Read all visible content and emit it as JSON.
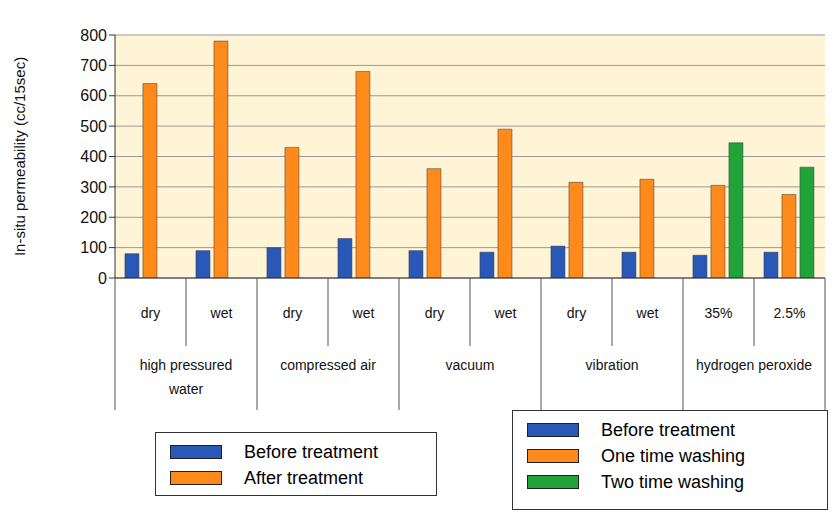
{
  "chart_data": {
    "type": "bar",
    "y_label": "In-situ permeability (cc/15sec)",
    "categories": [
      "dry",
      "wet",
      "dry",
      "wet",
      "dry",
      "wet",
      "dry",
      "wet",
      "35%",
      "2.5%"
    ],
    "groups": [
      {
        "label": "high pressured water",
        "categories": [
          "dry",
          "wet"
        ]
      },
      {
        "label": "compressed air",
        "categories": [
          "dry",
          "wet"
        ]
      },
      {
        "label": "vacuum",
        "categories": [
          "dry",
          "wet"
        ]
      },
      {
        "label": "vibration",
        "categories": [
          "dry",
          "wet"
        ]
      },
      {
        "label": "hydrogen peroxide",
        "categories": [
          "35%",
          "2.5%"
        ]
      }
    ],
    "series": [
      {
        "name": "Before treatment",
        "color": "#2a58b8",
        "values": [
          80,
          90,
          100,
          130,
          90,
          85,
          105,
          85,
          75,
          85
        ]
      },
      {
        "name": "After treatment",
        "color": "#ff8a1c",
        "values": [
          640,
          780,
          430,
          680,
          360,
          490,
          315,
          325,
          null,
          null
        ]
      },
      {
        "name": "One time washing",
        "color": "#ff8a1c",
        "values": [
          null,
          null,
          null,
          null,
          null,
          null,
          null,
          null,
          305,
          275
        ]
      },
      {
        "name": "Two time washing",
        "color": "#22a33a",
        "values": [
          null,
          null,
          null,
          null,
          null,
          null,
          null,
          null,
          445,
          365
        ]
      }
    ],
    "ylim": [
      0,
      800
    ],
    "yticks": [
      0,
      100,
      200,
      300,
      400,
      500,
      600,
      700,
      800
    ],
    "grid": true
  }
}
